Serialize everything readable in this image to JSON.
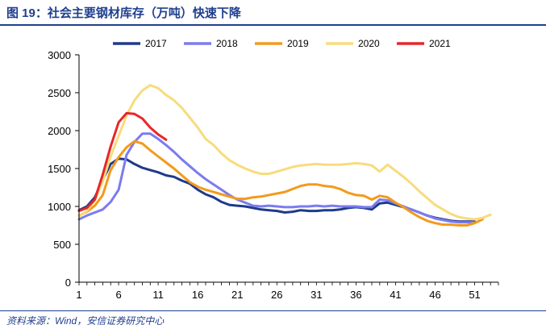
{
  "title": "图 19：社会主要钢材库存（万吨）快速下降",
  "source": "资料来源：Wind，安信证券研究中心",
  "chart_data": {
    "type": "line",
    "title": "社会主要钢材库存（万吨）快速下降",
    "xlabel": "",
    "ylabel": "",
    "xlim": [
      1,
      53
    ],
    "ylim": [
      0,
      3000
    ],
    "x_ticks": [
      1,
      6,
      11,
      16,
      21,
      26,
      31,
      36,
      41,
      46,
      51
    ],
    "y_ticks": [
      0,
      500,
      1000,
      1500,
      2000,
      2500,
      3000
    ],
    "grid": false,
    "legend_position": "top",
    "series": [
      {
        "name": "2017",
        "color": "#1f3a8a",
        "points": [
          [
            1,
            950
          ],
          [
            2,
            1000
          ],
          [
            3,
            1120
          ],
          [
            4,
            1350
          ],
          [
            5,
            1560
          ],
          [
            6,
            1630
          ],
          [
            7,
            1620
          ],
          [
            8,
            1560
          ],
          [
            9,
            1510
          ],
          [
            10,
            1480
          ],
          [
            11,
            1450
          ],
          [
            12,
            1410
          ],
          [
            13,
            1390
          ],
          [
            14,
            1340
          ],
          [
            15,
            1300
          ],
          [
            16,
            1220
          ],
          [
            17,
            1160
          ],
          [
            18,
            1120
          ],
          [
            19,
            1060
          ],
          [
            20,
            1020
          ],
          [
            21,
            1010
          ],
          [
            22,
            1000
          ],
          [
            23,
            980
          ],
          [
            24,
            960
          ],
          [
            25,
            950
          ],
          [
            26,
            940
          ],
          [
            27,
            920
          ],
          [
            28,
            930
          ],
          [
            29,
            950
          ],
          [
            30,
            940
          ],
          [
            31,
            940
          ],
          [
            32,
            950
          ],
          [
            33,
            950
          ],
          [
            34,
            960
          ],
          [
            35,
            980
          ],
          [
            36,
            990
          ],
          [
            37,
            980
          ],
          [
            38,
            960
          ],
          [
            39,
            1040
          ],
          [
            40,
            1050
          ],
          [
            41,
            1020
          ],
          [
            42,
            990
          ],
          [
            43,
            960
          ],
          [
            44,
            920
          ],
          [
            45,
            880
          ],
          [
            46,
            850
          ],
          [
            47,
            830
          ],
          [
            48,
            810
          ],
          [
            49,
            800
          ],
          [
            50,
            800
          ],
          [
            51,
            800
          ]
        ]
      },
      {
        "name": "2018",
        "color": "#7b7bf0",
        "points": [
          [
            1,
            830
          ],
          [
            2,
            880
          ],
          [
            3,
            920
          ],
          [
            4,
            960
          ],
          [
            5,
            1060
          ],
          [
            6,
            1220
          ],
          [
            7,
            1680
          ],
          [
            8,
            1850
          ],
          [
            9,
            1960
          ],
          [
            10,
            1960
          ],
          [
            11,
            1890
          ],
          [
            12,
            1810
          ],
          [
            13,
            1720
          ],
          [
            14,
            1620
          ],
          [
            15,
            1530
          ],
          [
            16,
            1440
          ],
          [
            17,
            1360
          ],
          [
            18,
            1290
          ],
          [
            19,
            1220
          ],
          [
            20,
            1150
          ],
          [
            21,
            1090
          ],
          [
            22,
            1050
          ],
          [
            23,
            1010
          ],
          [
            24,
            1000
          ],
          [
            25,
            1010
          ],
          [
            26,
            1000
          ],
          [
            27,
            990
          ],
          [
            28,
            990
          ],
          [
            29,
            1000
          ],
          [
            30,
            1000
          ],
          [
            31,
            1010
          ],
          [
            32,
            1000
          ],
          [
            33,
            1010
          ],
          [
            34,
            1000
          ],
          [
            35,
            1000
          ],
          [
            36,
            1000
          ],
          [
            37,
            990
          ],
          [
            38,
            990
          ],
          [
            39,
            1090
          ],
          [
            40,
            1080
          ],
          [
            41,
            1040
          ],
          [
            42,
            1000
          ],
          [
            43,
            960
          ],
          [
            44,
            920
          ],
          [
            45,
            880
          ],
          [
            46,
            840
          ],
          [
            47,
            820
          ],
          [
            48,
            800
          ],
          [
            49,
            790
          ],
          [
            50,
            790
          ],
          [
            51,
            790
          ]
        ]
      },
      {
        "name": "2019",
        "color": "#f39a1c",
        "points": [
          [
            1,
            880
          ],
          [
            2,
            930
          ],
          [
            3,
            1010
          ],
          [
            4,
            1150
          ],
          [
            5,
            1480
          ],
          [
            6,
            1650
          ],
          [
            7,
            1780
          ],
          [
            8,
            1860
          ],
          [
            9,
            1830
          ],
          [
            10,
            1740
          ],
          [
            11,
            1660
          ],
          [
            12,
            1580
          ],
          [
            13,
            1500
          ],
          [
            14,
            1410
          ],
          [
            15,
            1320
          ],
          [
            16,
            1260
          ],
          [
            17,
            1220
          ],
          [
            18,
            1190
          ],
          [
            19,
            1160
          ],
          [
            20,
            1130
          ],
          [
            21,
            1100
          ],
          [
            22,
            1100
          ],
          [
            23,
            1120
          ],
          [
            24,
            1130
          ],
          [
            25,
            1150
          ],
          [
            26,
            1170
          ],
          [
            27,
            1190
          ],
          [
            28,
            1230
          ],
          [
            29,
            1270
          ],
          [
            30,
            1290
          ],
          [
            31,
            1290
          ],
          [
            32,
            1270
          ],
          [
            33,
            1260
          ],
          [
            34,
            1230
          ],
          [
            35,
            1180
          ],
          [
            36,
            1150
          ],
          [
            37,
            1140
          ],
          [
            38,
            1090
          ],
          [
            39,
            1140
          ],
          [
            40,
            1120
          ],
          [
            41,
            1050
          ],
          [
            42,
            990
          ],
          [
            43,
            920
          ],
          [
            44,
            860
          ],
          [
            45,
            810
          ],
          [
            46,
            780
          ],
          [
            47,
            760
          ],
          [
            48,
            760
          ],
          [
            49,
            750
          ],
          [
            50,
            750
          ],
          [
            51,
            780
          ],
          [
            52,
            830
          ]
        ]
      },
      {
        "name": "2020",
        "color": "#f7dc7c",
        "points": [
          [
            1,
            870
          ],
          [
            2,
            940
          ],
          [
            3,
            1080
          ],
          [
            4,
            1330
          ],
          [
            5,
            1660
          ],
          [
            6,
            1930
          ],
          [
            7,
            2200
          ],
          [
            8,
            2400
          ],
          [
            9,
            2530
          ],
          [
            10,
            2600
          ],
          [
            11,
            2560
          ],
          [
            12,
            2470
          ],
          [
            13,
            2400
          ],
          [
            14,
            2300
          ],
          [
            15,
            2170
          ],
          [
            16,
            2040
          ],
          [
            17,
            1890
          ],
          [
            18,
            1810
          ],
          [
            19,
            1700
          ],
          [
            20,
            1610
          ],
          [
            21,
            1550
          ],
          [
            22,
            1500
          ],
          [
            23,
            1460
          ],
          [
            24,
            1430
          ],
          [
            25,
            1430
          ],
          [
            26,
            1460
          ],
          [
            27,
            1490
          ],
          [
            28,
            1520
          ],
          [
            29,
            1540
          ],
          [
            30,
            1550
          ],
          [
            31,
            1560
          ],
          [
            32,
            1550
          ],
          [
            33,
            1550
          ],
          [
            34,
            1550
          ],
          [
            35,
            1560
          ],
          [
            36,
            1570
          ],
          [
            37,
            1560
          ],
          [
            38,
            1540
          ],
          [
            39,
            1460
          ],
          [
            40,
            1550
          ],
          [
            41,
            1470
          ],
          [
            42,
            1390
          ],
          [
            43,
            1300
          ],
          [
            44,
            1200
          ],
          [
            45,
            1110
          ],
          [
            46,
            1020
          ],
          [
            47,
            960
          ],
          [
            48,
            900
          ],
          [
            49,
            860
          ],
          [
            50,
            840
          ],
          [
            51,
            830
          ],
          [
            52,
            850
          ],
          [
            53,
            890
          ]
        ]
      },
      {
        "name": "2021",
        "color": "#e8262a",
        "points": [
          [
            1,
            940
          ],
          [
            2,
            980
          ],
          [
            3,
            1090
          ],
          [
            4,
            1420
          ],
          [
            5,
            1790
          ],
          [
            6,
            2110
          ],
          [
            7,
            2230
          ],
          [
            8,
            2220
          ],
          [
            9,
            2160
          ],
          [
            10,
            2040
          ],
          [
            11,
            1950
          ],
          [
            12,
            1880
          ]
        ]
      }
    ]
  }
}
